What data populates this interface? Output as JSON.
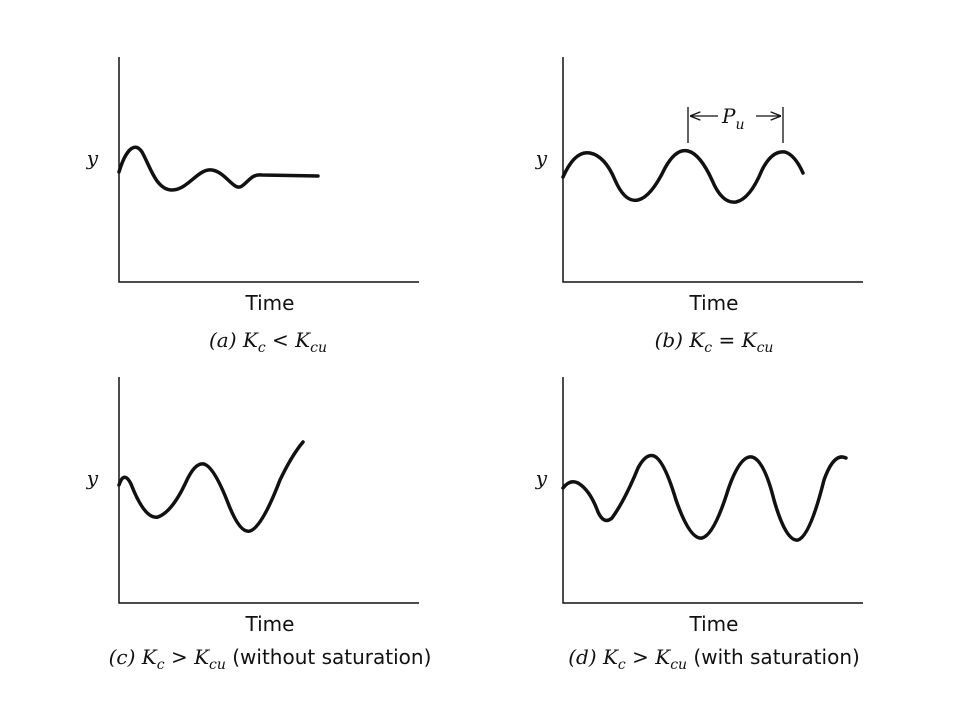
{
  "panels": [
    {
      "y_label": "y",
      "x_label": "Time",
      "caption": {
        "tag": "(a)",
        "lhs": "K",
        "lhs_sub": "c",
        "op": "<",
        "rhs": "K",
        "rhs_sub": "cu"
      }
    },
    {
      "y_label": "y",
      "x_label": "Time",
      "caption": {
        "tag": "(b)",
        "lhs": "K",
        "lhs_sub": "c",
        "op": "=",
        "rhs": "K",
        "rhs_sub": "cu"
      },
      "period": {
        "symbol": "P",
        "sub": "u"
      }
    },
    {
      "y_label": "y",
      "x_label": "Time",
      "caption": {
        "tag": "(c)",
        "lhs": "K",
        "lhs_sub": "c",
        "op": ">",
        "rhs": "K",
        "rhs_sub": "cu",
        "note": "(without saturation)"
      }
    },
    {
      "y_label": "y",
      "x_label": "Time",
      "caption": {
        "tag": "(d)",
        "lhs": "K",
        "lhs_sub": "c",
        "op": ">",
        "rhs": "K",
        "rhs_sub": "cu",
        "note": "(with saturation)"
      }
    }
  ]
}
